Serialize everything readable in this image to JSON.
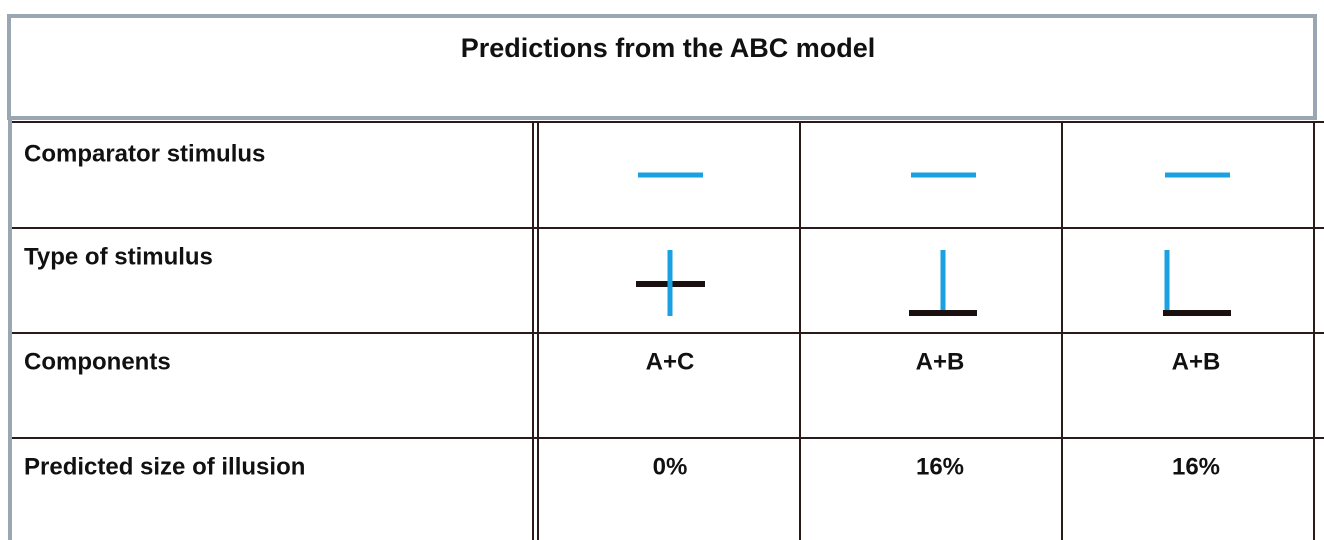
{
  "title": "Predictions from the ABC model",
  "table": {
    "rows": [
      {
        "label": "Comparator stimulus"
      },
      {
        "label": "Type of stimulus"
      },
      {
        "label": "Components",
        "cells": [
          "A+C",
          "A+B",
          "A+B"
        ]
      },
      {
        "label": "Predicted size of illusion",
        "cells": [
          "0%",
          "16%",
          "16%"
        ]
      }
    ]
  }
}
